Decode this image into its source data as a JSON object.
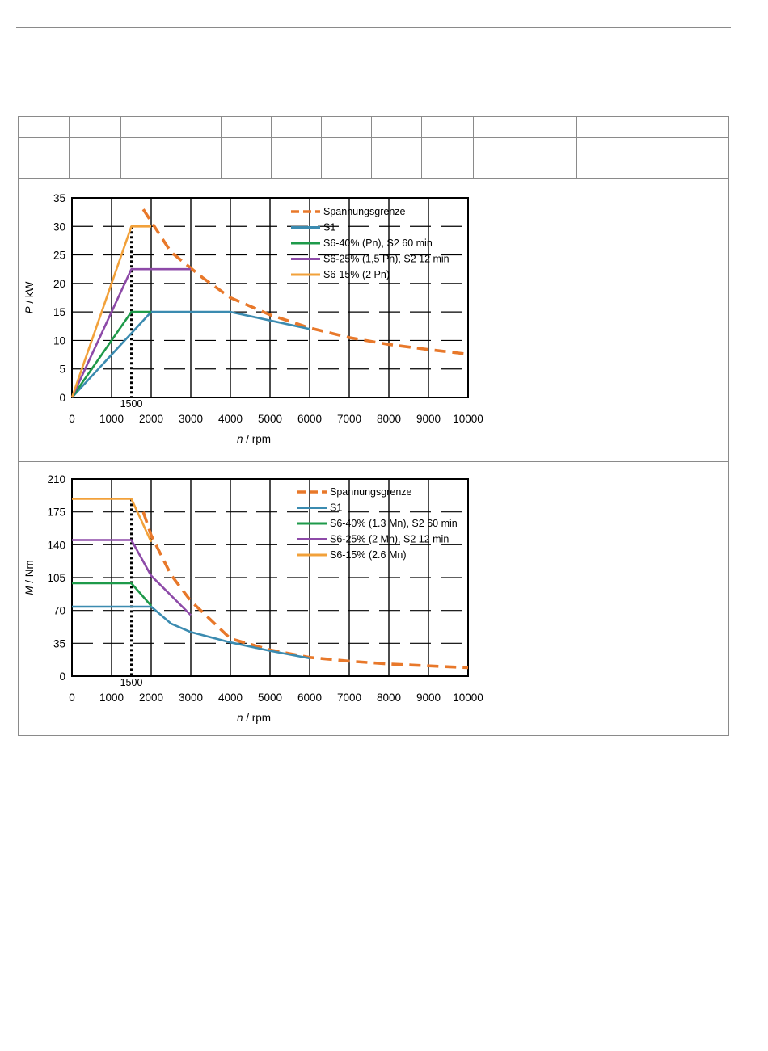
{
  "spec_table": {
    "rows": 3,
    "columns": 14
  },
  "chart_data": [
    {
      "type": "line",
      "xlabel_var": "n",
      "xlabel_unit": " / rpm",
      "ylabel_var": "P",
      "ylabel_unit": " / kW",
      "xlim": [
        0,
        10000
      ],
      "ylim": [
        0,
        35
      ],
      "xticks": [
        0,
        1000,
        2000,
        3000,
        4000,
        5000,
        6000,
        7000,
        8000,
        9000,
        10000
      ],
      "yticks": [
        0,
        5,
        10,
        15,
        20,
        25,
        30,
        35
      ],
      "grid": true,
      "legend_position": "top-right",
      "annotation": {
        "x": 1500,
        "label": "1500"
      },
      "series": [
        {
          "name": "Spannungsgrenze",
          "color": "#e8782a",
          "style": "dashed",
          "points": [
            [
              1800,
              33
            ],
            [
              2500,
              25.5
            ],
            [
              3300,
              21
            ],
            [
              4000,
              17.5
            ],
            [
              5000,
              14.5
            ],
            [
              6000,
              12.2
            ],
            [
              7000,
              10.5
            ],
            [
              8000,
              9.3
            ],
            [
              9000,
              8.4
            ],
            [
              10000,
              7.6
            ]
          ]
        },
        {
          "name": "S1",
          "color": "#3b8bb0",
          "style": "solid",
          "points": [
            [
              0,
              0
            ],
            [
              2000,
              15
            ],
            [
              4000,
              15
            ],
            [
              5000,
              13.5
            ],
            [
              6000,
              12
            ]
          ]
        },
        {
          "name": "S6-40% (Pn), S2 60 min",
          "color": "#1e9a4a",
          "style": "solid",
          "points": [
            [
              0,
              0
            ],
            [
              1500,
              15
            ],
            [
              2000,
              15
            ]
          ]
        },
        {
          "name": "S6-25% (1,5 Pn), S2 12 min",
          "color": "#8d4aa8",
          "style": "solid",
          "points": [
            [
              0,
              0
            ],
            [
              1500,
              22.5
            ],
            [
              3000,
              22.5
            ]
          ]
        },
        {
          "name": "S6-15% (2 Pn)",
          "color": "#f2a13a",
          "style": "solid",
          "points": [
            [
              0,
              0
            ],
            [
              1500,
              30
            ],
            [
              2000,
              30
            ]
          ]
        }
      ]
    },
    {
      "type": "line",
      "xlabel_var": "n",
      "xlabel_unit": " / rpm",
      "ylabel_var": "M",
      "ylabel_unit": " / Nm",
      "xlim": [
        0,
        10000
      ],
      "ylim": [
        0,
        210
      ],
      "xticks": [
        0,
        1000,
        2000,
        3000,
        4000,
        5000,
        6000,
        7000,
        8000,
        9000,
        10000
      ],
      "yticks": [
        0,
        35,
        70,
        105,
        140,
        175,
        210
      ],
      "grid": true,
      "legend_position": "top-right",
      "annotation": {
        "x": 1500,
        "label": "1500"
      },
      "series": [
        {
          "name": "Spannungsgrenze",
          "color": "#e8782a",
          "style": "dashed",
          "points": [
            [
              1800,
              175
            ],
            [
              2000,
              150
            ],
            [
              2500,
              108
            ],
            [
              3000,
              80
            ],
            [
              4000,
              40
            ],
            [
              5000,
              28
            ],
            [
              6000,
              20
            ],
            [
              7000,
              16
            ],
            [
              8000,
              13
            ],
            [
              9000,
              11
            ],
            [
              10000,
              9
            ]
          ]
        },
        {
          "name": "S1",
          "color": "#3b8bb0",
          "style": "solid",
          "points": [
            [
              0,
              74
            ],
            [
              2000,
              74
            ],
            [
              2500,
              56
            ],
            [
              3000,
              47
            ],
            [
              4000,
              36
            ],
            [
              5000,
              27
            ],
            [
              6000,
              19
            ]
          ]
        },
        {
          "name": "S6-40% (1.3 Mn), S2 60 min",
          "color": "#1e9a4a",
          "style": "solid",
          "points": [
            [
              0,
              99
            ],
            [
              1500,
              99
            ],
            [
              2000,
              75
            ]
          ]
        },
        {
          "name": "S6-25% (2 Mn), S2 12 min",
          "color": "#8d4aa8",
          "style": "solid",
          "points": [
            [
              0,
              145
            ],
            [
              1500,
              145
            ],
            [
              2000,
              107
            ],
            [
              3000,
              65
            ]
          ]
        },
        {
          "name": "S6-15% (2.6 Mn)",
          "color": "#f2a13a",
          "style": "solid",
          "points": [
            [
              0,
              189
            ],
            [
              1500,
              189
            ],
            [
              2000,
              143
            ]
          ]
        }
      ]
    }
  ]
}
